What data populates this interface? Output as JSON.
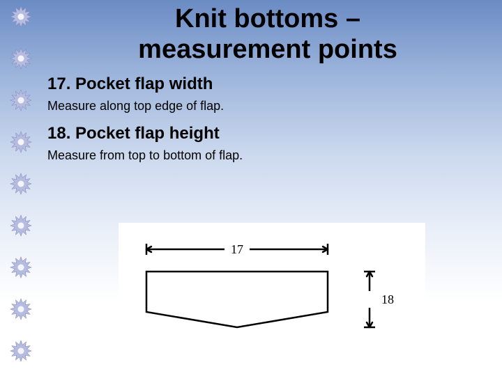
{
  "title_line1": "Knit bottoms –",
  "title_line2": "measurement points",
  "sections": [
    {
      "head": "17. Pocket flap width",
      "body": "Measure along top edge of flap."
    },
    {
      "head": "18. Pocket flap height",
      "body": "Measure from top to bottom of flap."
    }
  ],
  "diagram": {
    "label_width": "17",
    "label_height": "18",
    "stroke": "#000000",
    "stroke_width": 2.5,
    "bg": "#ffffff",
    "font_size": 18
  },
  "bullet": {
    "count": 9,
    "fill": "#b6bce0",
    "edge": "#8a90c0",
    "center": "#ffffff"
  }
}
